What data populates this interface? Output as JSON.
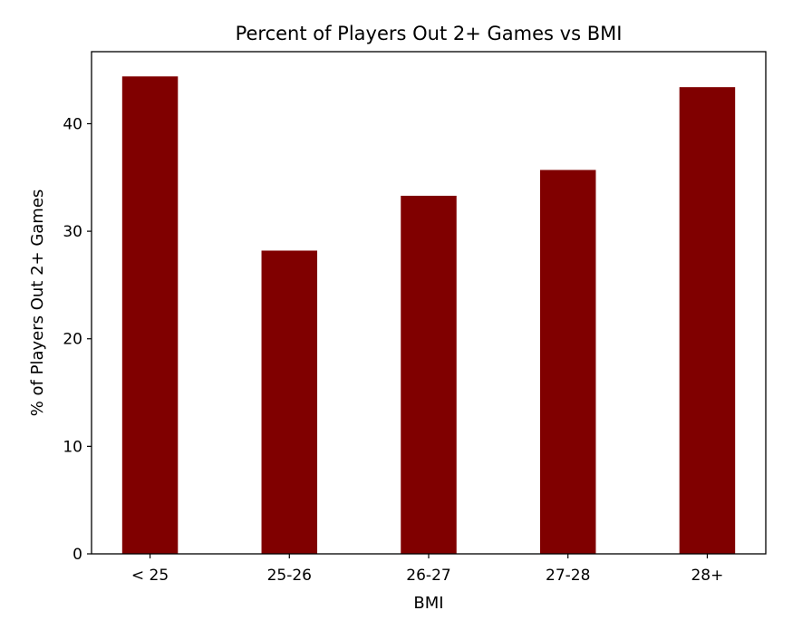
{
  "chart_data": {
    "type": "bar",
    "title": "Percent of Players Out 2+ Games vs BMI",
    "xlabel": "BMI",
    "ylabel": "% of Players Out 2+ Games",
    "categories": [
      "< 25",
      "25-26",
      "26-27",
      "27-28",
      "28+"
    ],
    "values": [
      44.4,
      28.2,
      33.3,
      35.7,
      43.4
    ],
    "ylim": [
      0,
      46.7
    ],
    "yticks": [
      0,
      10,
      20,
      30,
      40
    ],
    "grid": false,
    "bar_color": "#800000"
  }
}
